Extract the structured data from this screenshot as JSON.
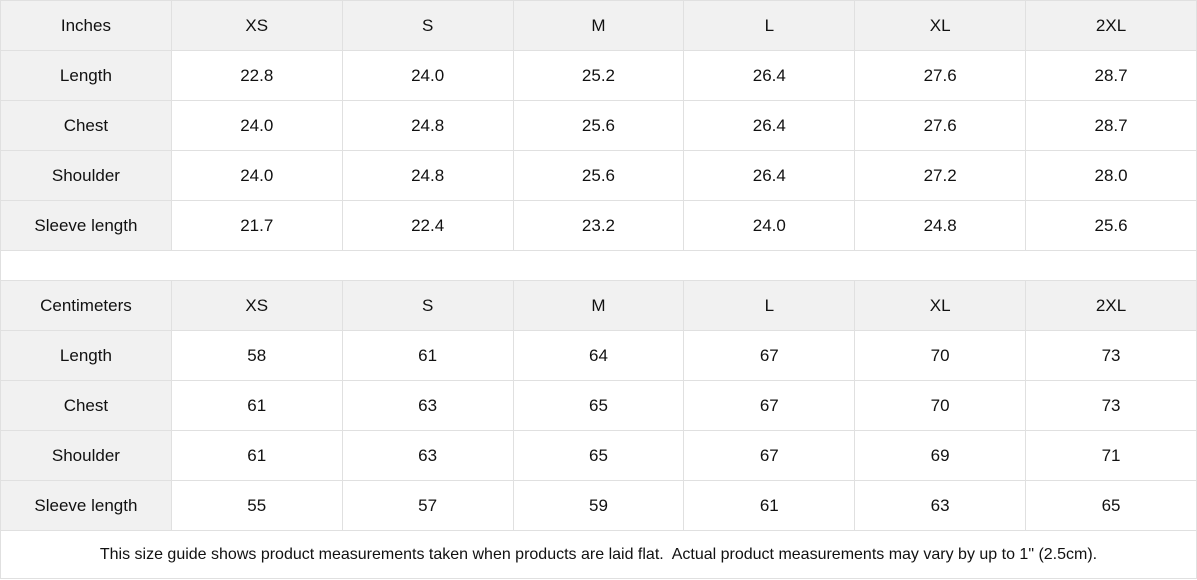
{
  "chart_data": [
    {
      "type": "table",
      "unit_label": "Inches",
      "columns": [
        "XS",
        "S",
        "M",
        "L",
        "XL",
        "2XL"
      ],
      "rows": [
        {
          "label": "Length",
          "values": [
            "22.8",
            "24.0",
            "25.2",
            "26.4",
            "27.6",
            "28.7"
          ]
        },
        {
          "label": "Chest",
          "values": [
            "24.0",
            "24.8",
            "25.6",
            "26.4",
            "27.6",
            "28.7"
          ]
        },
        {
          "label": "Shoulder",
          "values": [
            "24.0",
            "24.8",
            "25.6",
            "26.4",
            "27.2",
            "28.0"
          ]
        },
        {
          "label": "Sleeve length",
          "values": [
            "21.7",
            "22.4",
            "23.2",
            "24.0",
            "24.8",
            "25.6"
          ]
        }
      ]
    },
    {
      "type": "table",
      "unit_label": "Centimeters",
      "columns": [
        "XS",
        "S",
        "M",
        "L",
        "XL",
        "2XL"
      ],
      "rows": [
        {
          "label": "Length",
          "values": [
            "58",
            "61",
            "64",
            "67",
            "70",
            "73"
          ]
        },
        {
          "label": "Chest",
          "values": [
            "61",
            "63",
            "65",
            "67",
            "70",
            "73"
          ]
        },
        {
          "label": "Shoulder",
          "values": [
            "61",
            "63",
            "65",
            "67",
            "69",
            "71"
          ]
        },
        {
          "label": "Sleeve length",
          "values": [
            "55",
            "57",
            "59",
            "61",
            "63",
            "65"
          ]
        }
      ]
    }
  ],
  "footer_note": "This size guide shows product measurements taken when products are laid flat.  Actual product measurements may vary by up to 1\" (2.5cm).",
  "colors": {
    "header_bg": "#f1f1f1",
    "cell_bg": "#ffffff",
    "border": "#e0e0e0",
    "text": "#111111"
  }
}
